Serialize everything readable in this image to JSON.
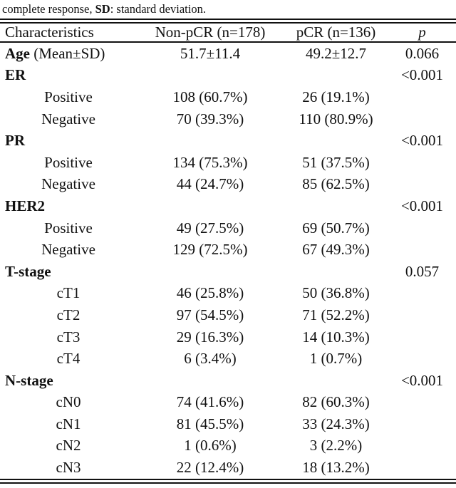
{
  "caption": {
    "prefix": "complete response, ",
    "bold_term": "SD",
    "suffix": ": standard deviation."
  },
  "table": {
    "columns": [
      "Characteristics",
      "Non-pCR (n=178)",
      "pCR (n=136)",
      "p"
    ],
    "rows": [
      {
        "type": "measure",
        "label_bold": "Age",
        "label_rest": " (Mean±SD)",
        "non_pcr": "51.7±11.4",
        "pcr": "49.2±12.7",
        "p": "0.066"
      },
      {
        "type": "group",
        "label": "ER",
        "p": "<0.001"
      },
      {
        "type": "sub",
        "label": "Positive",
        "non_pcr": "108 (60.7%)",
        "pcr": "26 (19.1%)"
      },
      {
        "type": "sub",
        "label": "Negative",
        "non_pcr": "70 (39.3%)",
        "pcr": "110 (80.9%)"
      },
      {
        "type": "group",
        "label": "PR",
        "p": "<0.001"
      },
      {
        "type": "sub",
        "label": "Positive",
        "non_pcr": "134 (75.3%)",
        "pcr": "51 (37.5%)"
      },
      {
        "type": "sub",
        "label": "Negative",
        "non_pcr": "44 (24.7%)",
        "pcr": "85 (62.5%)"
      },
      {
        "type": "group",
        "label": "HER2",
        "p": "<0.001"
      },
      {
        "type": "sub",
        "label": "Positive",
        "non_pcr": "49 (27.5%)",
        "pcr": "69 (50.7%)"
      },
      {
        "type": "sub",
        "label": "Negative",
        "non_pcr": "129 (72.5%)",
        "pcr": "67 (49.3%)"
      },
      {
        "type": "group",
        "label": "T-stage",
        "p": "0.057"
      },
      {
        "type": "sub",
        "label": "cT1",
        "non_pcr": "46 (25.8%)",
        "pcr": "50 (36.8%)"
      },
      {
        "type": "sub",
        "label": "cT2",
        "non_pcr": "97 (54.5%)",
        "pcr": "71 (52.2%)"
      },
      {
        "type": "sub",
        "label": "cT3",
        "non_pcr": "29 (16.3%)",
        "pcr": "14 (10.3%)"
      },
      {
        "type": "sub",
        "label": "cT4",
        "non_pcr": "6 (3.4%)",
        "pcr": "1 (0.7%)"
      },
      {
        "type": "group",
        "label": "N-stage",
        "p": "<0.001"
      },
      {
        "type": "sub",
        "label": "cN0",
        "non_pcr": "74 (41.6%)",
        "pcr": "82 (60.3%)"
      },
      {
        "type": "sub",
        "label": "cN1",
        "non_pcr": "81 (45.5%)",
        "pcr": "33 (24.3%)"
      },
      {
        "type": "sub",
        "label": "cN2",
        "non_pcr": "1 (0.6%)",
        "pcr": "3 (2.2%)"
      },
      {
        "type": "sub",
        "label": "cN3",
        "non_pcr": "22 (12.4%)",
        "pcr": "18 (13.2%)"
      }
    ]
  },
  "colors": {
    "text": "#111111",
    "rule": "#111111",
    "background": "#ffffff"
  }
}
